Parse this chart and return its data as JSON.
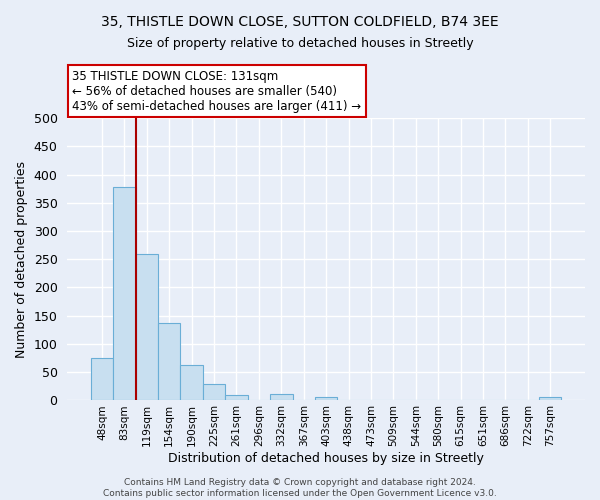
{
  "title1": "35, THISTLE DOWN CLOSE, SUTTON COLDFIELD, B74 3EE",
  "title2": "Size of property relative to detached houses in Streetly",
  "xlabel": "Distribution of detached houses by size in Streetly",
  "ylabel": "Number of detached properties",
  "bar_labels": [
    "48sqm",
    "83sqm",
    "119sqm",
    "154sqm",
    "190sqm",
    "225sqm",
    "261sqm",
    "296sqm",
    "332sqm",
    "367sqm",
    "403sqm",
    "438sqm",
    "473sqm",
    "509sqm",
    "544sqm",
    "580sqm",
    "615sqm",
    "651sqm",
    "686sqm",
    "722sqm",
    "757sqm"
  ],
  "bar_values": [
    74,
    378,
    260,
    137,
    62,
    29,
    10,
    0,
    11,
    0,
    5,
    0,
    0,
    0,
    0,
    0,
    0,
    0,
    0,
    0,
    5
  ],
  "bar_color_fill": "#c8dff0",
  "bar_color_edge": "#6aaed6",
  "vline_x": 2.0,
  "vline_color": "#aa0000",
  "annotation_title": "35 THISTLE DOWN CLOSE: 131sqm",
  "annotation_line1": "← 56% of detached houses are smaller (540)",
  "annotation_line2": "43% of semi-detached houses are larger (411) →",
  "annotation_box_facecolor": "#ffffff",
  "annotation_box_edgecolor": "#cc0000",
  "ylim": [
    0,
    500
  ],
  "yticks": [
    0,
    50,
    100,
    150,
    200,
    250,
    300,
    350,
    400,
    450,
    500
  ],
  "footer1": "Contains HM Land Registry data © Crown copyright and database right 2024.",
  "footer2": "Contains public sector information licensed under the Open Government Licence v3.0.",
  "bg_color": "#e8eef8",
  "plot_bg_color": "#e8eef8",
  "grid_color": "#ffffff",
  "title1_fontsize": 10,
  "title2_fontsize": 9,
  "ylabel_fontsize": 9,
  "xlabel_fontsize": 9,
  "ytick_fontsize": 9,
  "xtick_fontsize": 7.5
}
